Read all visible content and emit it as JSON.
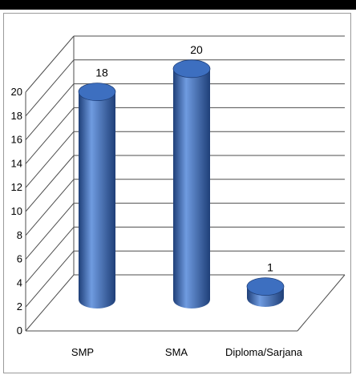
{
  "chart_data": {
    "type": "bar",
    "variant": "3d-cylinder",
    "title": "",
    "xlabel": "",
    "ylabel": "",
    "categories": [
      "SMP",
      "SMA",
      "Diploma/Sarjana"
    ],
    "values": [
      18,
      20,
      1
    ],
    "data_labels": [
      "18",
      "20",
      "1"
    ],
    "yticks": [
      "0",
      "2",
      "4",
      "6",
      "8",
      "10",
      "12",
      "14",
      "16",
      "18",
      "20"
    ],
    "ylim": [
      0,
      20
    ],
    "grid": true,
    "legend": "none",
    "bar_color": "#3d6fc0",
    "bar_dark": "#1f3f78",
    "bar_light": "#6f9be0",
    "wall_line_color": "#4d4d4d"
  }
}
